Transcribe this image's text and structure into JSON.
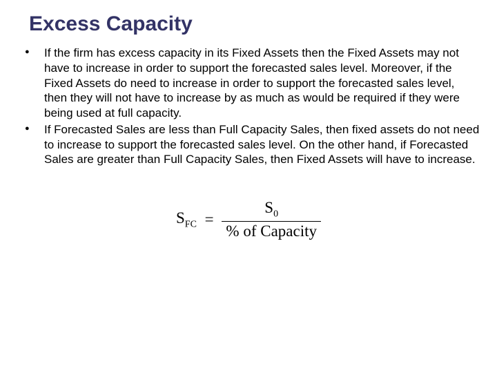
{
  "title": "Excess Capacity",
  "bullets": [
    "If the firm has excess capacity in its Fixed Assets then the Fixed Assets may not have to increase in order to support the forecasted sales level. Moreover, if the Fixed Assets do need to increase in order to support the forecasted sales level, then they will not have to increase by as much as would be required if they were being used at full capacity.",
    "If Forecasted Sales are less than Full Capacity Sales, then fixed assets do not need to increase to support the forecasted sales level. On the other hand, if Forecasted Sales are greater than Full Capacity Sales, then Fixed Assets will have to increase."
  ],
  "formula": {
    "lhs_base": "S",
    "lhs_sub": "FC",
    "equals": "=",
    "num_base": "S",
    "num_sub": "0",
    "den": "% of Capacity"
  },
  "colors": {
    "title": "#333366",
    "text": "#000000",
    "background": "#ffffff"
  }
}
